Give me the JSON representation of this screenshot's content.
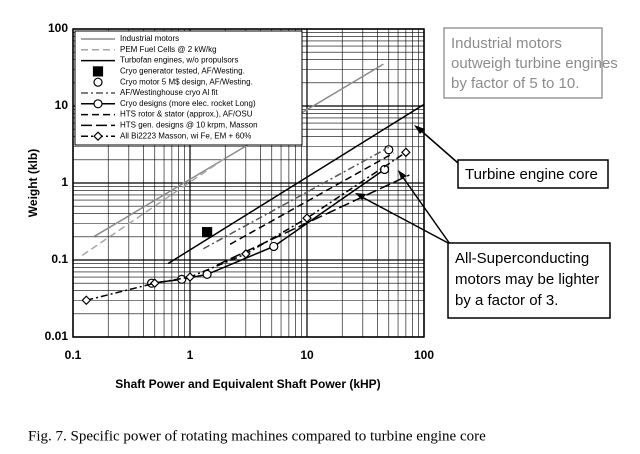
{
  "chart_data": {
    "type": "line",
    "ylabel": "Weight (klb)",
    "xlabel": "Shaft Power and Equivalent Shaft Power (kHP)",
    "caption": "Fig. 7. Specific power of rotating machines compared to turbine engine core",
    "annotations": [
      "Industrial motors",
      "outweigh turbine engines",
      "by factor of 5 to 10.",
      "Turbine engine core",
      "All-Superconducting",
      "motors may be lighter",
      "by a factor of 3."
    ],
    "xscale": "log",
    "yscale": "log",
    "xlim": [
      0.1,
      100
    ],
    "ylim": [
      0.01,
      100
    ],
    "xticks": [
      0.1,
      1,
      10,
      100
    ],
    "yticks": [
      0.01,
      0.1,
      1,
      10,
      100
    ],
    "grid": true,
    "minor_grid": true,
    "legend": "upper left",
    "series": [
      {
        "name": "Industrial motors",
        "color": "#8c8c8c",
        "dash": "solid",
        "marker": null,
        "x": [
          0.15,
          45
        ],
        "values": [
          0.2,
          35
        ]
      },
      {
        "name": "PEM Fuel Cells @ 2 kW/kg",
        "color": "#a6a6a6",
        "dash": "dashed",
        "marker": null,
        "x": [
          0.12,
          2
        ],
        "values": [
          0.115,
          2.1
        ]
      },
      {
        "name": "Turbofan engines, w/o propulsors",
        "color": "#000000",
        "dash": "solid",
        "marker": null,
        "x": [
          0.65,
          100
        ],
        "values": [
          0.09,
          10.5
        ]
      },
      {
        "name": "Cryo generator tested, AF/Westing.",
        "color": "#000000",
        "dash": "none",
        "marker": "square",
        "x": [
          1.4
        ],
        "values": [
          0.23
        ]
      },
      {
        "name": "Cryo motor 5 M$ design, AF/Westing.",
        "color": "#000000",
        "dash": "none",
        "marker": "circle",
        "x": [
          50
        ],
        "values": [
          2.7
        ]
      },
      {
        "name": "AF/Westinghouse cryo Al fit",
        "color": "#555555",
        "dash": "dashdot",
        "marker": null,
        "x": [
          1.3,
          50
        ],
        "values": [
          0.14,
          2.9
        ]
      },
      {
        "name": "Cryo designs (more elec. rocket Long)",
        "color": "#000000",
        "dash": "solid",
        "marker": "circle",
        "x": [
          0.47,
          0.85,
          1.4,
          5.2,
          46
        ],
        "values": [
          0.05,
          0.056,
          0.065,
          0.15,
          1.5
        ]
      },
      {
        "name": "HTS rotor & stator (approx.), AF/OSU",
        "color": "#000000",
        "dash": "dashed",
        "marker": null,
        "x": [
          2.2,
          55
        ],
        "values": [
          0.16,
          2.45
        ]
      },
      {
        "name": "HTS gen. designs @ 10 krpm, Masson",
        "color": "#000000",
        "dash": "longdash",
        "marker": null,
        "x": [
          1.7,
          75
        ],
        "values": [
          0.086,
          1.27
        ]
      },
      {
        "name": "All Bi2223 Masson, wi Fe, EM + 60%",
        "color": "#000000",
        "dash": "dashdot",
        "marker": "diamond",
        "x": [
          0.13,
          0.5,
          1,
          3,
          10,
          70
        ],
        "values": [
          0.03,
          0.05,
          0.06,
          0.12,
          0.35,
          2.5
        ]
      }
    ]
  }
}
